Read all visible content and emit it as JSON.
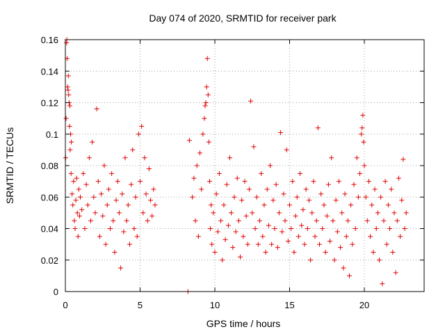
{
  "chart_data": {
    "type": "scatter",
    "title": "Day 074 of 2020, SRMTID for receiver park",
    "xlabel": "GPS time / hours",
    "ylabel": "SRMTID / TECUs",
    "xlim": [
      0,
      24
    ],
    "ylim": [
      0,
      0.16
    ],
    "xticks": [
      0,
      5,
      10,
      15,
      20
    ],
    "xtick_labels": [
      "0",
      "5",
      "10",
      "15",
      "20"
    ],
    "yticks": [
      0,
      0.02,
      0.04,
      0.06,
      0.08,
      0.1,
      0.12,
      0.14,
      0.16
    ],
    "ytick_labels": [
      "0",
      "0.02",
      "0.04",
      "0.06",
      "0.08",
      "0.1",
      "0.12",
      "0.14",
      "0.16"
    ],
    "grid": true,
    "marker": "plus",
    "color": "#e00000",
    "series": [
      {
        "name": "SRMTID",
        "points": [
          [
            0.02,
            0.085
          ],
          [
            0.05,
            0.11
          ],
          [
            0.08,
            0.158
          ],
          [
            0.1,
            0.16
          ],
          [
            0.12,
            0.148
          ],
          [
            0.15,
            0.13
          ],
          [
            0.18,
            0.128
          ],
          [
            0.2,
            0.137
          ],
          [
            0.22,
            0.125
          ],
          [
            0.25,
            0.12
          ],
          [
            0.28,
            0.105
          ],
          [
            0.3,
            0.118
          ],
          [
            0.32,
            0.09
          ],
          [
            0.35,
            0.1
          ],
          [
            0.38,
            0.075
          ],
          [
            0.4,
            0.095
          ],
          [
            0.45,
            0.062
          ],
          [
            0.5,
            0.055
          ],
          [
            0.55,
            0.07
          ],
          [
            0.6,
            0.045
          ],
          [
            0.65,
            0.04
          ],
          [
            0.7,
            0.058
          ],
          [
            0.75,
            0.072
          ],
          [
            0.8,
            0.05
          ],
          [
            0.85,
            0.035
          ],
          [
            0.9,
            0.065
          ],
          [
            0.95,
            0.048
          ],
          [
            1.0,
            0.06
          ],
          [
            1.1,
            0.052
          ],
          [
            1.2,
            0.075
          ],
          [
            1.3,
            0.04
          ],
          [
            1.4,
            0.068
          ],
          [
            1.5,
            0.055
          ],
          [
            1.6,
            0.085
          ],
          [
            1.7,
            0.045
          ],
          [
            1.8,
            0.095
          ],
          [
            1.9,
            0.06
          ],
          [
            2.0,
            0.05
          ],
          [
            2.1,
            0.116
          ],
          [
            2.2,
            0.07
          ],
          [
            2.3,
            0.035
          ],
          [
            2.4,
            0.062
          ],
          [
            2.5,
            0.048
          ],
          [
            2.6,
            0.08
          ],
          [
            2.7,
            0.03
          ],
          [
            2.8,
            0.055
          ],
          [
            2.9,
            0.065
          ],
          [
            3.0,
            0.04
          ],
          [
            3.1,
            0.075
          ],
          [
            3.2,
            0.045
          ],
          [
            3.3,
            0.025
          ],
          [
            3.4,
            0.058
          ],
          [
            3.5,
            0.07
          ],
          [
            3.6,
            0.05
          ],
          [
            3.7,
            0.015
          ],
          [
            3.8,
            0.062
          ],
          [
            3.9,
            0.038
          ],
          [
            4.0,
            0.085
          ],
          [
            4.1,
            0.045
          ],
          [
            4.2,
            0.055
          ],
          [
            4.3,
            0.03
          ],
          [
            4.4,
            0.068
          ],
          [
            4.5,
            0.09
          ],
          [
            4.6,
            0.04
          ],
          [
            4.7,
            0.06
          ],
          [
            4.8,
            0.035
          ],
          [
            4.9,
            0.1
          ],
          [
            5.0,
            0.07
          ],
          [
            5.1,
            0.105
          ],
          [
            5.2,
            0.05
          ],
          [
            5.3,
            0.085
          ],
          [
            5.4,
            0.062
          ],
          [
            5.5,
            0.045
          ],
          [
            5.6,
            0.078
          ],
          [
            5.7,
            0.058
          ],
          [
            5.8,
            0.048
          ],
          [
            5.9,
            0.065
          ],
          [
            6.0,
            0.055
          ],
          [
            8.2,
            0.0
          ],
          [
            8.3,
            0.096
          ],
          [
            8.5,
            0.06
          ],
          [
            8.6,
            0.072
          ],
          [
            8.7,
            0.045
          ],
          [
            8.8,
            0.08
          ],
          [
            8.9,
            0.035
          ],
          [
            9.0,
            0.088
          ],
          [
            9.1,
            0.065
          ],
          [
            9.2,
            0.1
          ],
          [
            9.3,
            0.11
          ],
          [
            9.35,
            0.118
          ],
          [
            9.4,
            0.12
          ],
          [
            9.45,
            0.13
          ],
          [
            9.5,
            0.148
          ],
          [
            9.55,
            0.125
          ],
          [
            9.6,
            0.095
          ],
          [
            9.65,
            0.07
          ],
          [
            9.7,
            0.04
          ],
          [
            9.75,
            0.055
          ],
          [
            9.8,
            0.03
          ],
          [
            9.9,
            0.05
          ],
          [
            10.0,
            0.025
          ],
          [
            10.1,
            0.062
          ],
          [
            10.2,
            0.038
          ],
          [
            10.3,
            0.075
          ],
          [
            10.4,
            0.045
          ],
          [
            10.5,
            0.02
          ],
          [
            10.6,
            0.055
          ],
          [
            10.7,
            0.033
          ],
          [
            10.8,
            0.068
          ],
          [
            10.9,
            0.042
          ],
          [
            11.0,
            0.085
          ],
          [
            11.1,
            0.05
          ],
          [
            11.2,
            0.028
          ],
          [
            11.3,
            0.06
          ],
          [
            11.4,
            0.038
          ],
          [
            11.5,
            0.072
          ],
          [
            11.6,
            0.045
          ],
          [
            11.7,
            0.022
          ],
          [
            11.8,
            0.058
          ],
          [
            11.9,
            0.035
          ],
          [
            12.0,
            0.07
          ],
          [
            12.1,
            0.048
          ],
          [
            12.2,
            0.03
          ],
          [
            12.3,
            0.065
          ],
          [
            12.4,
            0.121
          ],
          [
            12.5,
            0.05
          ],
          [
            12.6,
            0.092
          ],
          [
            12.7,
            0.04
          ],
          [
            12.8,
            0.06
          ],
          [
            12.9,
            0.03
          ],
          [
            13.0,
            0.045
          ],
          [
            13.1,
            0.075
          ],
          [
            13.2,
            0.035
          ],
          [
            13.3,
            0.055
          ],
          [
            13.4,
            0.025
          ],
          [
            13.5,
            0.065
          ],
          [
            13.6,
            0.042
          ],
          [
            13.7,
            0.08
          ],
          [
            13.8,
            0.03
          ],
          [
            13.9,
            0.058
          ],
          [
            14.0,
            0.04
          ],
          [
            14.1,
            0.068
          ],
          [
            14.2,
            0.028
          ],
          [
            14.3,
            0.05
          ],
          [
            14.4,
            0.101
          ],
          [
            14.5,
            0.038
          ],
          [
            14.6,
            0.062
          ],
          [
            14.7,
            0.045
          ],
          [
            14.8,
            0.09
          ],
          [
            14.9,
            0.032
          ],
          [
            15.0,
            0.055
          ],
          [
            15.1,
            0.04
          ],
          [
            15.2,
            0.07
          ],
          [
            15.3,
            0.025
          ],
          [
            15.4,
            0.048
          ],
          [
            15.5,
            0.06
          ],
          [
            15.6,
            0.035
          ],
          [
            15.7,
            0.075
          ],
          [
            15.8,
            0.042
          ],
          [
            15.9,
            0.052
          ],
          [
            16.0,
            0.03
          ],
          [
            16.1,
            0.065
          ],
          [
            16.2,
            0.04
          ],
          [
            16.3,
            0.058
          ],
          [
            16.4,
            0.02
          ],
          [
            16.5,
            0.05
          ],
          [
            16.6,
            0.07
          ],
          [
            16.7,
            0.035
          ],
          [
            16.8,
            0.045
          ],
          [
            16.9,
            0.104
          ],
          [
            17.0,
            0.03
          ],
          [
            17.1,
            0.062
          ],
          [
            17.2,
            0.04
          ],
          [
            17.3,
            0.055
          ],
          [
            17.4,
            0.025
          ],
          [
            17.5,
            0.048
          ],
          [
            17.6,
            0.068
          ],
          [
            17.7,
            0.032
          ],
          [
            17.8,
            0.085
          ],
          [
            17.9,
            0.045
          ],
          [
            18.0,
            0.02
          ],
          [
            18.1,
            0.058
          ],
          [
            18.2,
            0.038
          ],
          [
            18.3,
            0.07
          ],
          [
            18.4,
            0.028
          ],
          [
            18.5,
            0.05
          ],
          [
            18.6,
            0.015
          ],
          [
            18.7,
            0.062
          ],
          [
            18.8,
            0.035
          ],
          [
            18.9,
            0.045
          ],
          [
            19.0,
            0.01
          ],
          [
            19.1,
            0.055
          ],
          [
            19.2,
            0.03
          ],
          [
            19.3,
            0.068
          ],
          [
            19.4,
            0.04
          ],
          [
            19.5,
            0.085
          ],
          [
            19.6,
            0.06
          ],
          [
            19.7,
            0.075
          ],
          [
            19.8,
            0.1
          ],
          [
            19.85,
            0.104
          ],
          [
            19.9,
            0.112
          ],
          [
            19.95,
            0.095
          ],
          [
            20.0,
            0.08
          ],
          [
            20.1,
            0.06
          ],
          [
            20.2,
            0.045
          ],
          [
            20.3,
            0.07
          ],
          [
            20.4,
            0.035
          ],
          [
            20.5,
            0.055
          ],
          [
            20.6,
            0.025
          ],
          [
            20.7,
            0.065
          ],
          [
            20.8,
            0.04
          ],
          [
            20.9,
            0.05
          ],
          [
            21.0,
            0.02
          ],
          [
            21.1,
            0.06
          ],
          [
            21.2,
            0.005
          ],
          [
            21.3,
            0.045
          ],
          [
            21.4,
            0.07
          ],
          [
            21.5,
            0.03
          ],
          [
            21.6,
            0.055
          ],
          [
            21.7,
            0.04
          ],
          [
            21.8,
            0.065
          ],
          [
            21.9,
            0.025
          ],
          [
            22.0,
            0.05
          ],
          [
            22.1,
            0.012
          ],
          [
            22.2,
            0.045
          ],
          [
            22.3,
            0.072
          ],
          [
            22.4,
            0.035
          ],
          [
            22.5,
            0.058
          ],
          [
            22.6,
            0.084
          ],
          [
            22.7,
            0.04
          ],
          [
            22.8,
            0.05
          ]
        ]
      }
    ]
  }
}
